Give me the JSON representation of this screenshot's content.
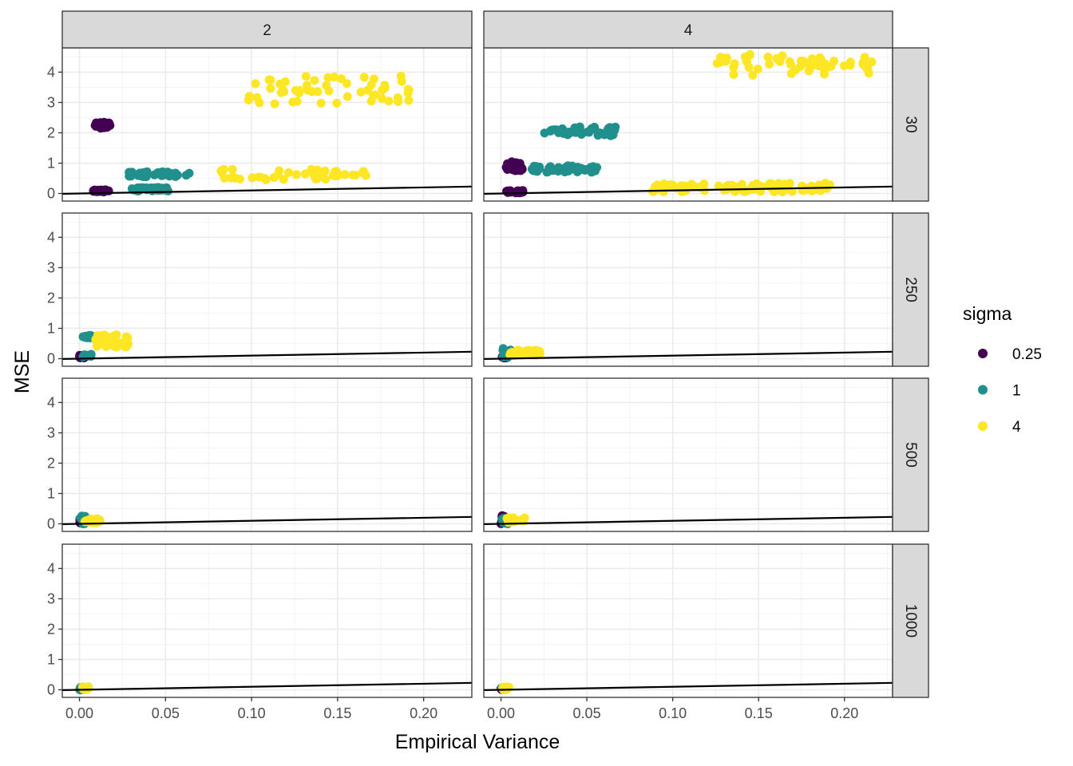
{
  "chart_data": {
    "type": "scatter",
    "xlabel": "Empirical Variance",
    "ylabel": "MSE",
    "xlim": [
      -0.01,
      0.228
    ],
    "ylim": [
      -0.25,
      4.8
    ],
    "x_ticks": [
      0.0,
      0.05,
      0.1,
      0.15,
      0.2
    ],
    "x_tick_labels": [
      "0.00",
      "0.05",
      "0.10",
      "0.15",
      "0.20"
    ],
    "y_ticks": [
      0,
      1,
      2,
      3,
      4
    ],
    "y_tick_labels": [
      "0",
      "1",
      "2",
      "3",
      "4"
    ],
    "grid": true,
    "legend": {
      "title": "sigma",
      "position": "right",
      "entries": [
        {
          "label": "0.25",
          "color": "#440154"
        },
        {
          "label": "1",
          "color": "#21908C"
        },
        {
          "label": "4",
          "color": "#FDE725"
        }
      ]
    },
    "col_facets": [
      "2",
      "4"
    ],
    "row_facets": [
      "30",
      "250",
      "500",
      "1000"
    ],
    "reference_line": {
      "intercept": 0,
      "slope": 1,
      "color": "#000000"
    },
    "clusters": [
      {
        "col": 0,
        "row": 0,
        "sigma": "0.25",
        "x": [
          0.008,
          0.018
        ],
        "y": [
          2.15,
          2.35
        ],
        "n": 30
      },
      {
        "col": 0,
        "row": 0,
        "sigma": "0.25",
        "x": [
          0.008,
          0.017
        ],
        "y": [
          0.05,
          0.12
        ],
        "n": 30
      },
      {
        "col": 0,
        "row": 0,
        "sigma": "1",
        "x": [
          0.025,
          0.065
        ],
        "y": [
          0.55,
          0.72
        ],
        "n": 40
      },
      {
        "col": 0,
        "row": 0,
        "sigma": "1",
        "x": [
          0.03,
          0.052
        ],
        "y": [
          0.08,
          0.2
        ],
        "n": 40
      },
      {
        "col": 0,
        "row": 0,
        "sigma": "4",
        "x": [
          0.08,
          0.167
        ],
        "y": [
          0.45,
          0.8
        ],
        "n": 45
      },
      {
        "col": 0,
        "row": 0,
        "sigma": "4",
        "x": [
          0.097,
          0.195
        ],
        "y": [
          2.95,
          3.9
        ],
        "n": 55
      },
      {
        "col": 1,
        "row": 0,
        "sigma": "0.25",
        "x": [
          0.003,
          0.013
        ],
        "y": [
          0.75,
          1.05
        ],
        "n": 20
      },
      {
        "col": 1,
        "row": 0,
        "sigma": "0.25",
        "x": [
          0.002,
          0.014
        ],
        "y": [
          0.02,
          0.1
        ],
        "n": 25
      },
      {
        "col": 1,
        "row": 0,
        "sigma": "1",
        "x": [
          0.025,
          0.067
        ],
        "y": [
          1.9,
          2.2
        ],
        "n": 45
      },
      {
        "col": 1,
        "row": 0,
        "sigma": "1",
        "x": [
          0.018,
          0.057
        ],
        "y": [
          0.7,
          0.92
        ],
        "n": 45
      },
      {
        "col": 1,
        "row": 0,
        "sigma": "4",
        "x": [
          0.087,
          0.192
        ],
        "y": [
          0.05,
          0.35
        ],
        "n": 90
      },
      {
        "col": 1,
        "row": 0,
        "sigma": "4",
        "x": [
          0.125,
          0.22
        ],
        "y": [
          3.9,
          4.6
        ],
        "n": 55
      },
      {
        "col": 0,
        "row": 1,
        "sigma": "0.25",
        "x": [
          0.0,
          0.004
        ],
        "y": [
          0.02,
          0.12
        ],
        "n": 15
      },
      {
        "col": 0,
        "row": 1,
        "sigma": "1",
        "x": [
          0.001,
          0.007
        ],
        "y": [
          0.05,
          0.15
        ],
        "n": 12
      },
      {
        "col": 0,
        "row": 1,
        "sigma": "1",
        "x": [
          0.001,
          0.007
        ],
        "y": [
          0.68,
          0.78
        ],
        "n": 12
      },
      {
        "col": 0,
        "row": 1,
        "sigma": "4",
        "x": [
          0.009,
          0.029
        ],
        "y": [
          0.38,
          0.8
        ],
        "n": 40
      },
      {
        "col": 1,
        "row": 1,
        "sigma": "0.25",
        "x": [
          0.0,
          0.004
        ],
        "y": [
          0.02,
          0.1
        ],
        "n": 15
      },
      {
        "col": 1,
        "row": 1,
        "sigma": "1",
        "x": [
          0.001,
          0.006
        ],
        "y": [
          0.05,
          0.35
        ],
        "n": 15
      },
      {
        "col": 1,
        "row": 1,
        "sigma": "4",
        "x": [
          0.005,
          0.023
        ],
        "y": [
          0.1,
          0.28
        ],
        "n": 40
      },
      {
        "col": 0,
        "row": 2,
        "sigma": "0.25",
        "x": [
          0.0,
          0.002
        ],
        "y": [
          0.0,
          0.2
        ],
        "n": 15
      },
      {
        "col": 0,
        "row": 2,
        "sigma": "1",
        "x": [
          0.0,
          0.004
        ],
        "y": [
          0.0,
          0.28
        ],
        "n": 15
      },
      {
        "col": 0,
        "row": 2,
        "sigma": "4",
        "x": [
          0.003,
          0.012
        ],
        "y": [
          0.03,
          0.18
        ],
        "n": 25
      },
      {
        "col": 1,
        "row": 2,
        "sigma": "0.25",
        "x": [
          0.0,
          0.002
        ],
        "y": [
          0.0,
          0.3
        ],
        "n": 15
      },
      {
        "col": 1,
        "row": 2,
        "sigma": "1",
        "x": [
          0.0,
          0.004
        ],
        "y": [
          0.0,
          0.2
        ],
        "n": 15
      },
      {
        "col": 1,
        "row": 2,
        "sigma": "4",
        "x": [
          0.003,
          0.014
        ],
        "y": [
          0.05,
          0.22
        ],
        "n": 25
      },
      {
        "col": 0,
        "row": 3,
        "sigma": "0.25",
        "x": [
          0.0,
          0.001
        ],
        "y": [
          0.0,
          0.06
        ],
        "n": 8
      },
      {
        "col": 0,
        "row": 3,
        "sigma": "1",
        "x": [
          0.0,
          0.002
        ],
        "y": [
          0.0,
          0.08
        ],
        "n": 8
      },
      {
        "col": 0,
        "row": 3,
        "sigma": "4",
        "x": [
          0.001,
          0.006
        ],
        "y": [
          0.0,
          0.1
        ],
        "n": 15
      },
      {
        "col": 1,
        "row": 3,
        "sigma": "0.25",
        "x": [
          0.0,
          0.001
        ],
        "y": [
          0.0,
          0.06
        ],
        "n": 8
      },
      {
        "col": 1,
        "row": 3,
        "sigma": "1",
        "x": [
          0.0,
          0.002
        ],
        "y": [
          0.0,
          0.08
        ],
        "n": 8
      },
      {
        "col": 1,
        "row": 3,
        "sigma": "4",
        "x": [
          0.001,
          0.005
        ],
        "y": [
          0.0,
          0.1
        ],
        "n": 15
      }
    ]
  }
}
